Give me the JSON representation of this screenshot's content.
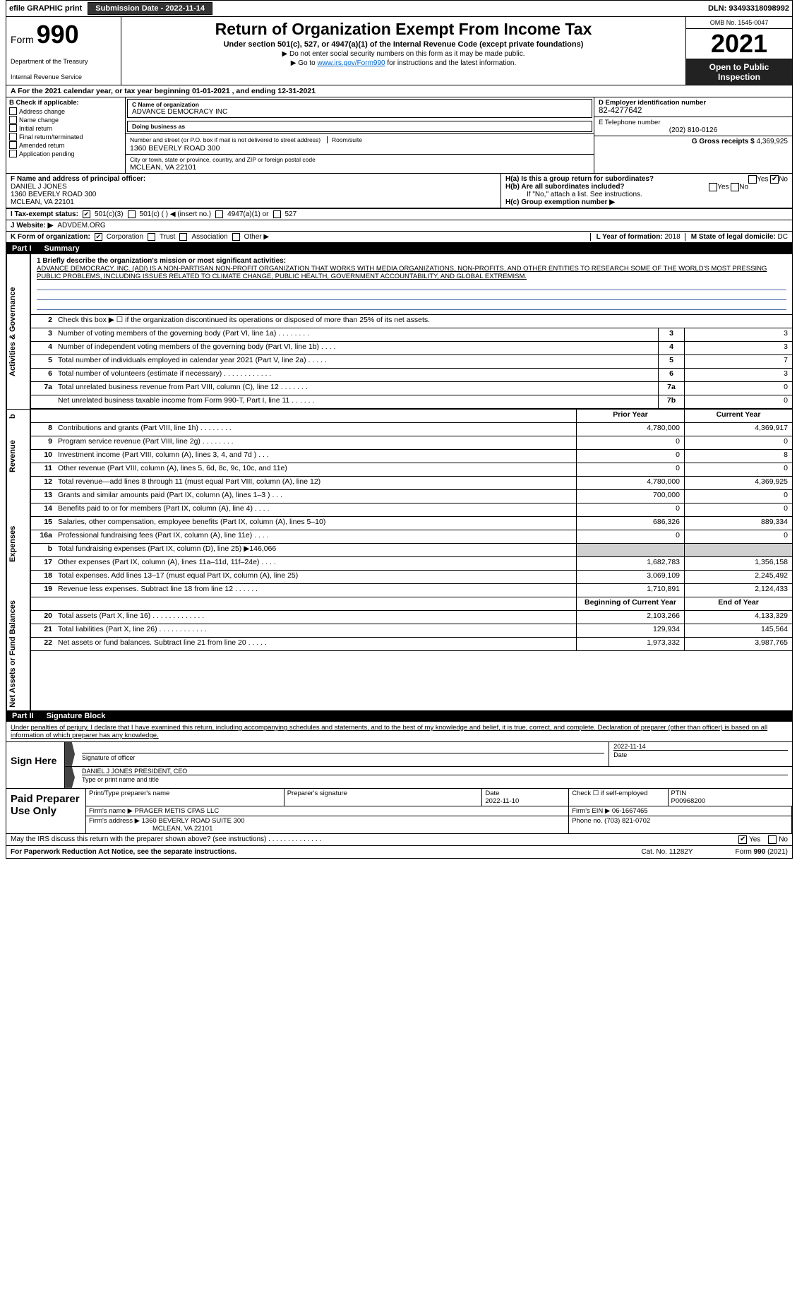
{
  "topbar": {
    "efile": "efile GRAPHIC print",
    "submission_label": "Submission Date - 2022-11-14",
    "dln": "DLN: 93493318098992"
  },
  "header": {
    "form_prefix": "Form",
    "form_number": "990",
    "dept": "Department of the Treasury",
    "irs": "Internal Revenue Service",
    "title": "Return of Organization Exempt From Income Tax",
    "subtitle": "Under section 501(c), 527, or 4947(a)(1) of the Internal Revenue Code (except private foundations)",
    "note1": "▶ Do not enter social security numbers on this form as it may be made public.",
    "note2_pre": "▶ Go to ",
    "note2_link": "www.irs.gov/Form990",
    "note2_post": " for instructions and the latest information.",
    "omb": "OMB No. 1545-0047",
    "year": "2021",
    "open_public": "Open to Public Inspection"
  },
  "period": {
    "line": "For the 2021 calendar year, or tax year beginning 01-01-2021    , and ending 12-31-2021"
  },
  "colB": {
    "hdr": "B Check if applicable:",
    "opts": [
      "Address change",
      "Name change",
      "Initial return",
      "Final return/terminated",
      "Amended return",
      "Application pending"
    ]
  },
  "colC": {
    "name_lbl": "C Name of organization",
    "name": "ADVANCE DEMOCRACY INC",
    "dba_lbl": "Doing business as",
    "dba": "",
    "addr_lbl": "Number and street (or P.O. box if mail is not delivered to street address)",
    "addr": "1360 BEVERLY ROAD 300",
    "room_lbl": "Room/suite",
    "city_lbl": "City or town, state or province, country, and ZIP or foreign postal code",
    "city": "MCLEAN, VA  22101"
  },
  "colD": {
    "ein_lbl": "D Employer identification number",
    "ein": "82-4277642",
    "phone_lbl": "E Telephone number",
    "phone": "(202) 810-0126",
    "gross_lbl": "G Gross receipts $ ",
    "gross": "4,369,925"
  },
  "rowF": {
    "lbl": "F  Name and address of principal officer:",
    "name": "DANIEL J JONES",
    "addr1": "1360 BEVERLY ROAD 300",
    "addr2": "MCLEAN, VA  22101"
  },
  "rowH": {
    "a": "H(a)  Is this a group return for subordinates?",
    "b": "H(b)  Are all subordinates included?",
    "b_note": "If \"No,\" attach a list. See instructions.",
    "c": "H(c)  Group exemption number ▶",
    "yes": "Yes",
    "no": "No"
  },
  "rowI": {
    "lbl": "I   Tax-exempt status:",
    "o1": "501(c)(3)",
    "o2": "501(c) (  ) ◀ (insert no.)",
    "o3": "4947(a)(1) or",
    "o4": "527"
  },
  "rowJ": {
    "lbl": "J   Website: ▶",
    "val": " ADVDEM.ORG"
  },
  "rowK": {
    "lbl": "K Form of organization:",
    "o1": "Corporation",
    "o2": "Trust",
    "o3": "Association",
    "o4": "Other ▶"
  },
  "rowL": {
    "lbl": "L Year of formation: ",
    "val": "2018"
  },
  "rowM": {
    "lbl": "M State of legal domicile: ",
    "val": "DC"
  },
  "part1": {
    "part": "Part I",
    "name": "Summary",
    "side1": "Activities & Governance",
    "side2": "Revenue",
    "side3": "Expenses",
    "side4": "Net Assets or Fund Balances",
    "q1_lbl": "1  Briefly describe the organization's mission or most significant activities:",
    "q1_text": "ADVANCE DEMOCRACY, INC. (ADI) IS A NON-PARTISAN NON-PROFIT ORGANIZATION THAT WORKS WITH MEDIA ORGANIZATIONS, NON-PROFITS, AND OTHER ENTITIES TO RESEARCH SOME OF THE WORLD'S MOST PRESSING PUBLIC PROBLEMS, INCLUDING ISSUES RELATED TO CLIMATE CHANGE, PUBLIC HEALTH, GOVERNMENT ACCOUNTABILITY, AND GLOBAL EXTREMISM.",
    "q2": "Check this box ▶ ☐  if the organization discontinued its operations or disposed of more than 25% of its net assets.",
    "rows_gov": [
      {
        "n": "3",
        "d": "Number of voting members of the governing body (Part VI, line 1a)   .    .    .    .    .    .    .    .",
        "c": "3",
        "v": "3"
      },
      {
        "n": "4",
        "d": "Number of independent voting members of the governing body (Part VI, line 1b)   .    .    .    .",
        "c": "4",
        "v": "3"
      },
      {
        "n": "5",
        "d": "Total number of individuals employed in calendar year 2021 (Part V, line 2a)   .    .    .    .    .",
        "c": "5",
        "v": "7"
      },
      {
        "n": "6",
        "d": "Total number of volunteers (estimate if necessary)    .    .    .    .    .    .    .    .    .    .    .    .",
        "c": "6",
        "v": "3"
      },
      {
        "n": "7a",
        "d": "Total unrelated business revenue from Part VIII, column (C), line 12   .    .    .    .    .    .    .",
        "c": "7a",
        "v": "0"
      },
      {
        "n": "",
        "d": "Net unrelated business taxable income from Form 990-T, Part I, line 11   .    .    .    .    .    .",
        "c": "7b",
        "v": "0"
      }
    ],
    "col_prior": "Prior Year",
    "col_current": "Current Year",
    "rows_rev": [
      {
        "n": "8",
        "d": "Contributions and grants (Part VIII, line 1h)    .    .    .    .    .    .    .    .",
        "p": "4,780,000",
        "c": "4,369,917"
      },
      {
        "n": "9",
        "d": "Program service revenue (Part VIII, line 2g)   .    .    .    .    .    .    .    .",
        "p": "0",
        "c": "0"
      },
      {
        "n": "10",
        "d": "Investment income (Part VIII, column (A), lines 3, 4, and 7d )   .    .    .",
        "p": "0",
        "c": "8"
      },
      {
        "n": "11",
        "d": "Other revenue (Part VIII, column (A), lines 5, 6d, 8c, 9c, 10c, and 11e)",
        "p": "0",
        "c": "0"
      },
      {
        "n": "12",
        "d": "Total revenue—add lines 8 through 11 (must equal Part VIII, column (A), line 12)",
        "p": "4,780,000",
        "c": "4,369,925"
      }
    ],
    "rows_exp": [
      {
        "n": "13",
        "d": "Grants and similar amounts paid (Part IX, column (A), lines 1–3 )  .    .    .",
        "p": "700,000",
        "c": "0"
      },
      {
        "n": "14",
        "d": "Benefits paid to or for members (Part IX, column (A), line 4)   .    .    .    .",
        "p": "0",
        "c": "0"
      },
      {
        "n": "15",
        "d": "Salaries, other compensation, employee benefits (Part IX, column (A), lines 5–10)",
        "p": "686,326",
        "c": "889,334"
      },
      {
        "n": "16a",
        "d": "Professional fundraising fees (Part IX, column (A), line 11e)   .    .    .    .",
        "p": "0",
        "c": "0"
      },
      {
        "n": "b",
        "d": "Total fundraising expenses (Part IX, column (D), line 25) ▶146,066",
        "p": "",
        "c": ""
      },
      {
        "n": "17",
        "d": "Other expenses (Part IX, column (A), lines 11a–11d, 11f–24e)   .    .    .    .",
        "p": "1,682,783",
        "c": "1,356,158"
      },
      {
        "n": "18",
        "d": "Total expenses. Add lines 13–17 (must equal Part IX, column (A), line 25)",
        "p": "3,069,109",
        "c": "2,245,492"
      },
      {
        "n": "19",
        "d": "Revenue less expenses. Subtract line 18 from line 12   .    .    .    .    .    .",
        "p": "1,710,891",
        "c": "2,124,433"
      }
    ],
    "col_boy": "Beginning of Current Year",
    "col_eoy": "End of Year",
    "rows_net": [
      {
        "n": "20",
        "d": "Total assets (Part X, line 16)   .    .    .    .    .    .    .    .    .    .    .    .    .",
        "p": "2,103,266",
        "c": "4,133,329"
      },
      {
        "n": "21",
        "d": "Total liabilities (Part X, line 26)    .    .    .    .    .    .    .    .    .    .    .    .",
        "p": "129,934",
        "c": "145,564"
      },
      {
        "n": "22",
        "d": "Net assets or fund balances. Subtract line 21 from line 20   .    .    .    .    .",
        "p": "1,973,332",
        "c": "3,987,765"
      }
    ]
  },
  "part2": {
    "part": "Part II",
    "name": "Signature Block",
    "penalties": "Under penalties of perjury, I declare that I have examined this return, including accompanying schedules and statements, and to the best of my knowledge and belief, it is true, correct, and complete. Declaration of preparer (other than officer) is based on all information of which preparer has any knowledge."
  },
  "sign": {
    "label": "Sign Here",
    "sig_officer_lbl": "Signature of officer",
    "date": "2022-11-14",
    "date_lbl": "Date",
    "name": "DANIEL J JONES  PRESIDENT, CEO",
    "name_lbl": "Type or print name and title"
  },
  "prep": {
    "label": "Paid Preparer Use Only",
    "h1": "Print/Type preparer's name",
    "h2": "Preparer's signature",
    "h3_lbl": "Date",
    "h3": "2022-11-10",
    "h4_lbl": "Check ☐ if self-employed",
    "h5_lbl": "PTIN",
    "h5": "P00968200",
    "firm_name_lbl": "Firm's name     ▶ ",
    "firm_name": "PRAGER METIS CPAS LLC",
    "firm_ein_lbl": "Firm's EIN ▶ ",
    "firm_ein": "06-1667465",
    "firm_addr_lbl": "Firm's address ▶ ",
    "firm_addr1": "1360 BEVERLY ROAD SUITE 300",
    "firm_addr2": "MCLEAN, VA  22101",
    "phone_lbl": "Phone no. ",
    "phone": "(703) 821-0702"
  },
  "footer": {
    "discuss": "May the IRS discuss this return with the preparer shown above? (see instructions)    .    .    .    .    .    .    .    .    .    .    .    .    .    .",
    "yes": "Yes",
    "no": "No",
    "paperwork": "For Paperwork Reduction Act Notice, see the separate instructions.",
    "cat": "Cat. No. 11282Y",
    "form": "Form 990 (2021)"
  }
}
